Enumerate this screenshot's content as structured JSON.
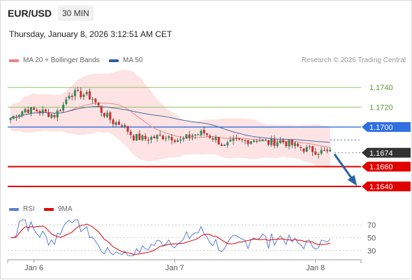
{
  "header": {
    "symbol": "EUR/USD",
    "interval": "30 MIN",
    "datetime": "Thursday, January 8, 2026 3:12:51 AM CET",
    "credit": "Research © 2026 Trading Central"
  },
  "legend_top": [
    {
      "label": "MA 20 + Bollinger Bands",
      "color": "#f08080"
    },
    {
      "label": "MA 50",
      "color": "#34609c"
    }
  ],
  "legend_bottom": [
    {
      "label": "RSI",
      "color": "#5b7fd6"
    },
    {
      "label": "9MA",
      "color": "#e00000"
    }
  ],
  "colors": {
    "resistance_green": "#8fc46a",
    "pivot_blue": "#2f6fe0",
    "support_red": "#e00000",
    "current_dark": "#333333",
    "arrow_blue": "#2962a8",
    "bollinger_fill": "#fde3e3",
    "ma20": "#e88a8a",
    "ma50": "#4a6aa8",
    "candle_up": "#2e8b57",
    "candle_down": "#d12c2c"
  },
  "chart_data": [
    {
      "type": "candlestick",
      "title": "EUR/USD",
      "ylim": [
        1.1628,
        1.1762
      ],
      "x_ticks": [
        {
          "label": "Jan 6",
          "pos": 8
        },
        {
          "label": "Jan 7",
          "pos": 56
        },
        {
          "label": "Jan 8",
          "pos": 104
        }
      ],
      "levels": [
        {
          "value": 1.174,
          "label": "1.1740",
          "kind": "resistance",
          "style": "green"
        },
        {
          "value": 1.172,
          "label": "1.1720",
          "kind": "resistance",
          "style": "green"
        },
        {
          "value": 1.17,
          "label": "1.1700",
          "kind": "pivot",
          "style": "blue"
        },
        {
          "value": 1.1674,
          "label": "1.1674",
          "kind": "current",
          "style": "dark"
        },
        {
          "value": 1.166,
          "label": "1.1660",
          "kind": "support",
          "style": "red"
        },
        {
          "value": 1.164,
          "label": "1.1640",
          "kind": "support",
          "style": "red"
        }
      ],
      "forecast_arrow": {
        "from_value": 1.1674,
        "to_value": 1.164
      },
      "ma50_value_at_end": 1.1687
    },
    {
      "type": "line",
      "title": "RSI",
      "ylim": [
        20,
        80
      ],
      "y_ticks": [
        70,
        50,
        30
      ],
      "series": [
        {
          "name": "RSI"
        },
        {
          "name": "9MA"
        }
      ]
    }
  ]
}
